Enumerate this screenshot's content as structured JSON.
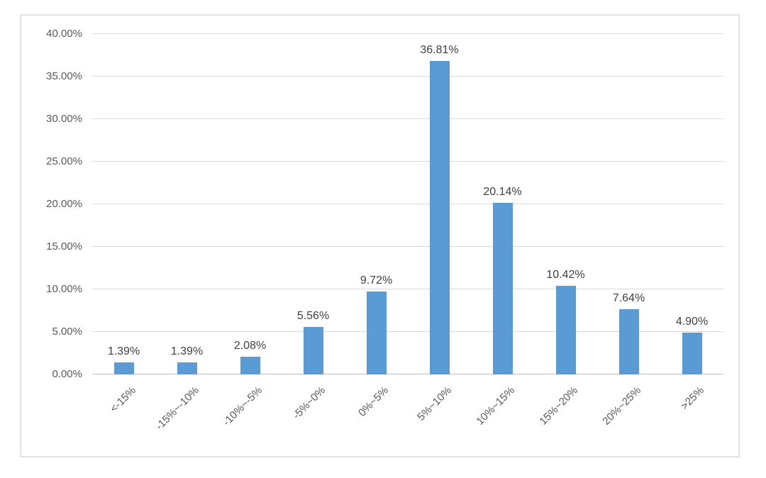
{
  "chart_data": {
    "type": "bar",
    "title": "",
    "xlabel": "",
    "ylabel": "",
    "categories": [
      "<-15%",
      "-15%~-10%",
      "-10%~-5%",
      "-5%~0%",
      "0%~5%",
      "5%~10%",
      "10%~15%",
      "15%~20%",
      "20%~25%",
      ">25%"
    ],
    "values": [
      1.39,
      1.39,
      2.08,
      5.56,
      9.72,
      36.81,
      20.14,
      10.42,
      7.64,
      4.9
    ],
    "data_labels": [
      "1.39%",
      "1.39%",
      "2.08%",
      "5.56%",
      "9.72%",
      "36.81%",
      "20.14%",
      "10.42%",
      "7.64%",
      "4.90%"
    ],
    "y_tick_values": [
      0,
      5,
      10,
      15,
      20,
      25,
      30,
      35,
      40
    ],
    "y_tick_labels": [
      "0.00%",
      "5.00%",
      "10.00%",
      "15.00%",
      "20.00%",
      "25.00%",
      "30.00%",
      "35.00%",
      "40.00%"
    ],
    "ylim": [
      0,
      40
    ],
    "grid": true,
    "legend": false,
    "x_label_rotation_deg": 45
  },
  "colors": {
    "bar": "#5B9BD5",
    "gridline": "#D9D9D9",
    "axis_line": "#BFBFBF",
    "tick_text": "#595959",
    "data_label_text": "#404040",
    "frame_border": "#E2E2E2",
    "background": "#FFFFFF"
  }
}
